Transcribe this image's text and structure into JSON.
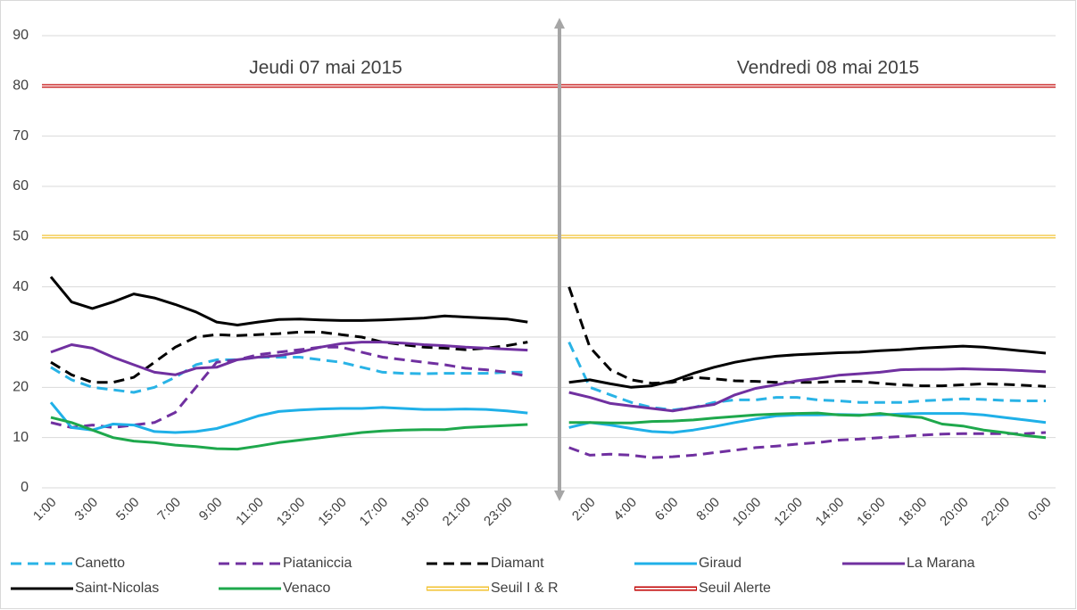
{
  "chart_data": {
    "type": "line",
    "annotations": [
      "Jeudi 07 mai 2015",
      "Vendredi 08 mai 2015"
    ],
    "categories": [
      "1:00",
      null,
      "3:00",
      null,
      "5:00",
      null,
      "7:00",
      null,
      "9:00",
      null,
      "11:00",
      null,
      "13:00",
      null,
      "15:00",
      null,
      "17:00",
      null,
      "19:00",
      null,
      "21:00",
      null,
      "23:00",
      null,
      null,
      null,
      "2:00",
      null,
      "4:00",
      null,
      "6:00",
      null,
      "8:00",
      null,
      "10:00",
      null,
      "12:00",
      null,
      "14:00",
      null,
      "16:00",
      null,
      "18:00",
      null,
      "20:00",
      null,
      "22:00",
      null,
      "0:00"
    ],
    "ylim": [
      0,
      90
    ],
    "yticks": [
      0,
      10,
      20,
      30,
      40,
      50,
      60,
      70,
      80,
      90
    ],
    "grid": true,
    "legend": "bottom",
    "series": [
      {
        "name": "Canetto",
        "color": "#29b3e6",
        "dash": true,
        "values": [
          24,
          21.5,
          20,
          19.5,
          19,
          20,
          22,
          24.5,
          25.5,
          25.5,
          26,
          26,
          26,
          25.5,
          25,
          24,
          23,
          22.8,
          22.7,
          22.8,
          22.8,
          22.8,
          23,
          23,
          null,
          29,
          20,
          18.5,
          17,
          16,
          15.5,
          16,
          17,
          17.5,
          17.5,
          18,
          18,
          17.5,
          17.3,
          17,
          17,
          17,
          17.3,
          17.5,
          17.7,
          17.6,
          17.4,
          17.3,
          17.3
        ]
      },
      {
        "name": "Piataniccia",
        "color": "#7030a0",
        "dash": true,
        "values": [
          13,
          12,
          12.5,
          12,
          12.5,
          13,
          15,
          20,
          25,
          25.5,
          26.5,
          27,
          27.5,
          28,
          28,
          27,
          26,
          25.5,
          25,
          24.5,
          23.8,
          23.5,
          23,
          22.2,
          null,
          8,
          6.5,
          6.7,
          6.5,
          6,
          6.2,
          6.5,
          7,
          7.5,
          8,
          8.3,
          8.7,
          9,
          9.5,
          9.7,
          10,
          10.2,
          10.5,
          10.7,
          10.8,
          10.8,
          10.8,
          10.8,
          11
        ]
      },
      {
        "name": "Diamant",
        "color": "#000000",
        "dash": true,
        "values": [
          25,
          22.5,
          21,
          21,
          22,
          25,
          28,
          30,
          30.5,
          30.3,
          30.5,
          30.7,
          31,
          31,
          30.5,
          30,
          29,
          28.5,
          28,
          27.8,
          27.5,
          27.8,
          28.3,
          29,
          null,
          40,
          28,
          23.5,
          21.5,
          20.8,
          21,
          22,
          21.7,
          21.3,
          21.2,
          21,
          21,
          21,
          21.2,
          21.2,
          20.8,
          20.5,
          20.3,
          20.3,
          20.5,
          20.7,
          20.6,
          20.4,
          20.2
        ]
      },
      {
        "name": "Giraud",
        "color": "#1fb0e8",
        "dash": false,
        "values": [
          17,
          12,
          11.5,
          12.7,
          12.5,
          11.2,
          11,
          11.2,
          11.8,
          13,
          14.3,
          15.2,
          15.5,
          15.7,
          15.8,
          15.8,
          16,
          15.8,
          15.6,
          15.6,
          15.7,
          15.6,
          15.3,
          14.9,
          null,
          12,
          13,
          12.5,
          11.8,
          11.2,
          11,
          11.5,
          12.2,
          13,
          13.7,
          14.3,
          14.5,
          14.5,
          14.6,
          14.5,
          14.5,
          14.7,
          14.8,
          14.8,
          14.8,
          14.5,
          14,
          13.5,
          13
        ]
      },
      {
        "name": "La Marana",
        "color": "#7030a0",
        "dash": false,
        "values": [
          27,
          28.5,
          27.8,
          26,
          24.5,
          23,
          22.5,
          23.8,
          24,
          25.5,
          26,
          26.3,
          27,
          28,
          28.7,
          29,
          29,
          28.8,
          28.5,
          28.3,
          28,
          27.8,
          27.6,
          27.4,
          null,
          19,
          18,
          16.8,
          16.3,
          15.8,
          15.3,
          16,
          16.6,
          18.5,
          19.8,
          20.5,
          21.3,
          21.8,
          22.4,
          22.7,
          23,
          23.5,
          23.6,
          23.6,
          23.7,
          23.6,
          23.5,
          23.3,
          23.1
        ]
      },
      {
        "name": "Saint-Nicolas",
        "color": "#000000",
        "dash": false,
        "values": [
          42,
          37,
          35.7,
          37,
          38.6,
          37.8,
          36.5,
          35,
          33,
          32.4,
          33,
          33.5,
          33.6,
          33.4,
          33.3,
          33.3,
          33.4,
          33.6,
          33.8,
          34.2,
          34,
          33.8,
          33.6,
          33,
          null,
          21,
          21.5,
          20.7,
          20,
          20.3,
          21.3,
          22.8,
          24,
          25,
          25.7,
          26.2,
          26.5,
          26.7,
          26.9,
          27,
          27.3,
          27.5,
          27.8,
          28,
          28.2,
          28,
          27.6,
          27.2,
          26.8
        ]
      },
      {
        "name": "Venaco",
        "color": "#1ea84c",
        "dash": false,
        "values": [
          14,
          13,
          11.5,
          10,
          9.3,
          9,
          8.5,
          8.2,
          7.8,
          7.7,
          8.3,
          9,
          9.5,
          10,
          10.5,
          11,
          11.3,
          11.5,
          11.6,
          11.6,
          12,
          12.2,
          12.4,
          12.6,
          null,
          13,
          13,
          12.9,
          12.9,
          13.2,
          13.3,
          13.5,
          13.9,
          14.2,
          14.5,
          14.7,
          14.8,
          14.9,
          14.5,
          14.4,
          14.8,
          14.3,
          14,
          12.7,
          12.3,
          11.5,
          11,
          10.4,
          10
        ]
      }
    ],
    "thresholds": [
      {
        "name": "Seuil I & R",
        "color": "#f2c230",
        "value": 50
      },
      {
        "name": "Seuil Alerte",
        "color": "#c00000",
        "value": 80
      }
    ]
  }
}
